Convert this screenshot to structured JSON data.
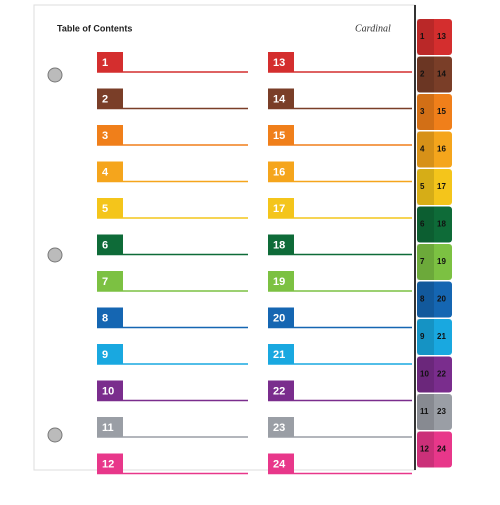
{
  "header": {
    "title": "Table of Contents",
    "brand": "Cardinal"
  },
  "rows": [
    {
      "left": "1",
      "right": "13",
      "color": "#d42e2e"
    },
    {
      "left": "2",
      "right": "14",
      "color": "#7a3e28"
    },
    {
      "left": "3",
      "right": "15",
      "color": "#f07f1a"
    },
    {
      "left": "4",
      "right": "16",
      "color": "#f5a51c"
    },
    {
      "left": "5",
      "right": "17",
      "color": "#f4c51b"
    },
    {
      "left": "6",
      "right": "18",
      "color": "#0e6b38"
    },
    {
      "left": "7",
      "right": "19",
      "color": "#7cc142"
    },
    {
      "left": "8",
      "right": "20",
      "color": "#1566b2"
    },
    {
      "left": "9",
      "right": "21",
      "color": "#19a8e0"
    },
    {
      "left": "10",
      "right": "22",
      "color": "#7a2d8d"
    },
    {
      "left": "11",
      "right": "23",
      "color": "#9a9ea5"
    },
    {
      "left": "12",
      "right": "24",
      "color": "#e8378a"
    }
  ]
}
